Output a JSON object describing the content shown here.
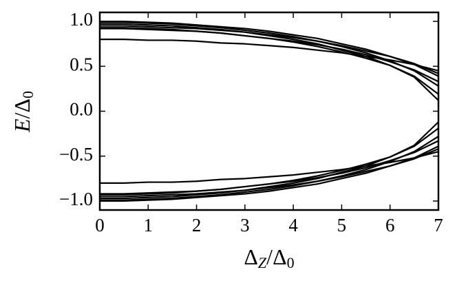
{
  "chart_data": {
    "type": "line",
    "xlabel": "ΔZ/Δ0",
    "ylabel": "E/Δ0",
    "x": [
      0,
      0.5,
      1,
      1.5,
      2,
      2.5,
      3,
      3.5,
      4,
      4.5,
      5,
      5.5,
      6,
      6.5,
      7
    ],
    "xlim": [
      0,
      7
    ],
    "ylim": [
      -1.1,
      1.1
    ],
    "xticks": [
      0,
      1,
      2,
      3,
      4,
      5,
      6,
      7
    ],
    "yticks": [
      {
        "value": -1.0,
        "label": "−1.0"
      },
      {
        "value": -0.5,
        "label": "−0.5"
      },
      {
        "value": 0.0,
        "label": "0.0"
      },
      0.5,
      {
        "value": 1.0,
        "label": "1.0"
      }
    ],
    "grid": false,
    "series": [
      {
        "color": "#000000",
        "values": [
          1.0,
          1.0,
          0.99,
          0.98,
          0.96,
          0.94,
          0.92,
          0.89,
          0.85,
          0.81,
          0.75,
          0.69,
          0.61,
          0.52,
          0.39
        ]
      },
      {
        "color": "#000000",
        "values": [
          0.99,
          0.99,
          0.98,
          0.97,
          0.95,
          0.93,
          0.9,
          0.87,
          0.83,
          0.78,
          0.72,
          0.65,
          0.56,
          0.45,
          0.28
        ]
      },
      {
        "color": "#000000",
        "values": [
          0.97,
          0.97,
          0.96,
          0.95,
          0.93,
          0.91,
          0.88,
          0.84,
          0.8,
          0.75,
          0.68,
          0.61,
          0.51,
          0.38,
          0.12
        ]
      },
      {
        "color": "#000000",
        "values": [
          0.95,
          0.95,
          0.94,
          0.93,
          0.92,
          0.9,
          0.88,
          0.85,
          0.82,
          0.78,
          0.73,
          0.67,
          0.61,
          0.53,
          0.42
        ]
      },
      {
        "color": "#000000",
        "values": [
          0.93,
          0.93,
          0.92,
          0.91,
          0.89,
          0.87,
          0.84,
          0.81,
          0.77,
          0.72,
          0.66,
          0.59,
          0.51,
          0.39,
          0.19
        ]
      },
      {
        "color": "#000000",
        "values": [
          0.92,
          0.92,
          0.91,
          0.9,
          0.89,
          0.87,
          0.84,
          0.81,
          0.78,
          0.74,
          0.69,
          0.63,
          0.55,
          0.46,
          0.33
        ]
      },
      {
        "color": "#000000",
        "values": [
          0.8,
          0.8,
          0.79,
          0.79,
          0.78,
          0.76,
          0.75,
          0.73,
          0.71,
          0.68,
          0.65,
          0.61,
          0.57,
          0.52,
          0.45
        ]
      },
      {
        "color": "#000000",
        "values": [
          -1.0,
          -1.0,
          -0.99,
          -0.98,
          -0.96,
          -0.94,
          -0.92,
          -0.89,
          -0.85,
          -0.81,
          -0.75,
          -0.69,
          -0.61,
          -0.52,
          -0.39
        ]
      },
      {
        "color": "#000000",
        "values": [
          -0.99,
          -0.99,
          -0.98,
          -0.97,
          -0.95,
          -0.93,
          -0.9,
          -0.87,
          -0.83,
          -0.78,
          -0.72,
          -0.65,
          -0.56,
          -0.45,
          -0.28
        ]
      },
      {
        "color": "#000000",
        "values": [
          -0.97,
          -0.97,
          -0.96,
          -0.95,
          -0.93,
          -0.91,
          -0.88,
          -0.84,
          -0.8,
          -0.75,
          -0.68,
          -0.61,
          -0.51,
          -0.38,
          -0.12
        ]
      },
      {
        "color": "#000000",
        "values": [
          -0.95,
          -0.95,
          -0.94,
          -0.93,
          -0.92,
          -0.9,
          -0.88,
          -0.85,
          -0.82,
          -0.78,
          -0.73,
          -0.67,
          -0.61,
          -0.53,
          -0.42
        ]
      },
      {
        "color": "#000000",
        "values": [
          -0.93,
          -0.93,
          -0.92,
          -0.91,
          -0.89,
          -0.87,
          -0.84,
          -0.81,
          -0.77,
          -0.72,
          -0.66,
          -0.59,
          -0.51,
          -0.39,
          -0.19
        ]
      },
      {
        "color": "#000000",
        "values": [
          -0.92,
          -0.92,
          -0.91,
          -0.9,
          -0.89,
          -0.87,
          -0.84,
          -0.81,
          -0.78,
          -0.74,
          -0.69,
          -0.63,
          -0.55,
          -0.46,
          -0.33
        ]
      },
      {
        "color": "#000000",
        "values": [
          -0.8,
          -0.8,
          -0.79,
          -0.79,
          -0.78,
          -0.76,
          -0.75,
          -0.73,
          -0.71,
          -0.68,
          -0.65,
          -0.61,
          -0.57,
          -0.52,
          -0.45
        ]
      }
    ]
  }
}
